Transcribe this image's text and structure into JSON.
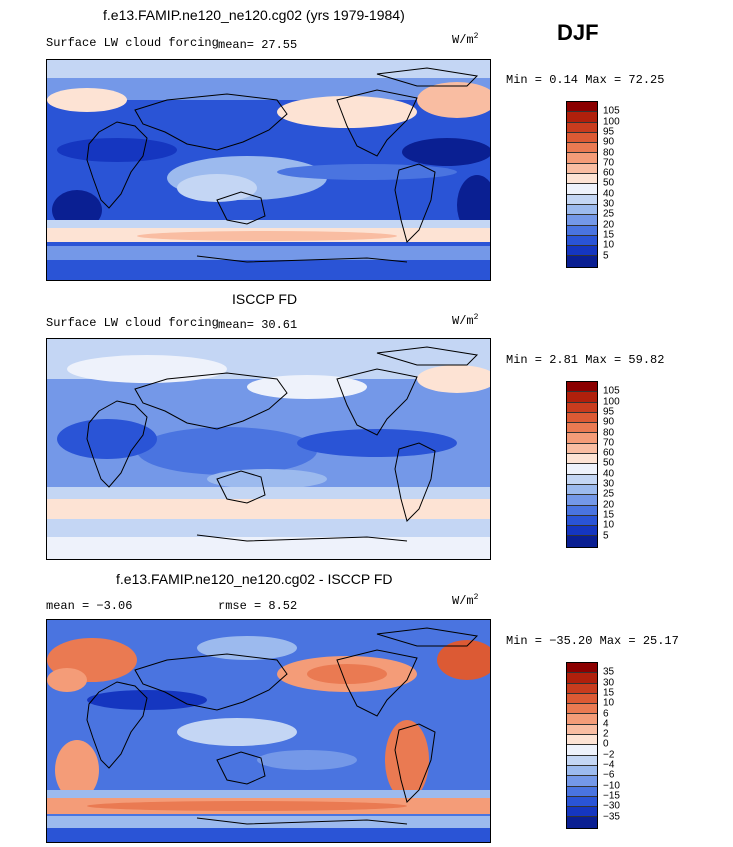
{
  "season": "DJF",
  "panels": [
    {
      "title": "f.e13.FAMIP.ne120_ne120.cg02 (yrs 1979-1984)",
      "variable": "Surface LW cloud forcing",
      "stat1": "mean=  27.55",
      "stat2": "",
      "units_base": "W/m",
      "units_exp": "2",
      "minmax": "Min =   0.14 Max =  72.25",
      "colorbar": {
        "labels": [
          "105",
          "100",
          "95",
          "90",
          "80",
          "70",
          "60",
          "50",
          "40",
          "30",
          "25",
          "20",
          "15",
          "10",
          "5"
        ],
        "colors": [
          "#8b0000",
          "#b0200c",
          "#c83c1e",
          "#dc5a34",
          "#ea7a52",
          "#f49c78",
          "#f9bda2",
          "#fde3d4",
          "#eef2fb",
          "#c4d6f4",
          "#9cbaee",
          "#7498e8",
          "#4a74e0",
          "#2a54d6",
          "#1536c0",
          "#0a1f92"
        ]
      }
    },
    {
      "title": "ISCCP FD",
      "variable": "Surface LW cloud forcing",
      "stat1": "mean=  30.61",
      "stat2": "",
      "units_base": "W/m",
      "units_exp": "2",
      "minmax": "Min =   2.81 Max =  59.82",
      "colorbar": {
        "labels": [
          "105",
          "100",
          "95",
          "90",
          "80",
          "70",
          "60",
          "50",
          "40",
          "30",
          "25",
          "20",
          "15",
          "10",
          "5"
        ],
        "colors": [
          "#8b0000",
          "#b0200c",
          "#c83c1e",
          "#dc5a34",
          "#ea7a52",
          "#f49c78",
          "#f9bda2",
          "#fde3d4",
          "#eef2fb",
          "#c4d6f4",
          "#9cbaee",
          "#7498e8",
          "#4a74e0",
          "#2a54d6",
          "#1536c0",
          "#0a1f92"
        ]
      }
    },
    {
      "title": "f.e13.FAMIP.ne120_ne120.cg02 - ISCCP FD",
      "variable": "",
      "stat1": "mean =  −3.06",
      "stat2": "rmse =   8.52",
      "units_base": "W/m",
      "units_exp": "2",
      "minmax": "Min = −35.20 Max =  25.17",
      "colorbar": {
        "labels": [
          "35",
          "30",
          "15",
          "10",
          "6",
          "4",
          "2",
          "0",
          "−2",
          "−4",
          "−6",
          "−10",
          "−15",
          "−30",
          "−35"
        ],
        "colors": [
          "#8b0000",
          "#b0200c",
          "#c83c1e",
          "#dc5a34",
          "#ea7a52",
          "#f49c78",
          "#f9bda2",
          "#fde3d4",
          "#eef2fb",
          "#c4d6f4",
          "#9cbaee",
          "#7498e8",
          "#4a74e0",
          "#2a54d6",
          "#1536c0",
          "#0a1f92"
        ]
      }
    }
  ]
}
